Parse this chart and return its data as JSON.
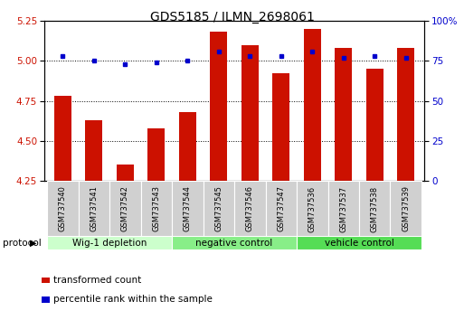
{
  "title": "GDS5185 / ILMN_2698061",
  "categories": [
    "GSM737540",
    "GSM737541",
    "GSM737542",
    "GSM737543",
    "GSM737544",
    "GSM737545",
    "GSM737546",
    "GSM737547",
    "GSM737536",
    "GSM737537",
    "GSM737538",
    "GSM737539"
  ],
  "bar_values": [
    4.78,
    4.63,
    4.35,
    4.58,
    4.68,
    5.18,
    5.1,
    4.92,
    5.2,
    5.08,
    4.95,
    5.08
  ],
  "dot_values": [
    78,
    75,
    73,
    74,
    75,
    81,
    78,
    78,
    81,
    77,
    78,
    77
  ],
  "ylim": [
    4.25,
    5.25
  ],
  "y2lim": [
    0,
    100
  ],
  "yticks": [
    4.25,
    4.5,
    4.75,
    5.0,
    5.25
  ],
  "y2ticks": [
    0,
    25,
    50,
    75,
    100
  ],
  "bar_color": "#cc1100",
  "dot_color": "#0000cc",
  "grid_color": "#000000",
  "protocol_groups": [
    {
      "label": "Wig-1 depletion",
      "start": 0,
      "end": 4,
      "color": "#ccffcc"
    },
    {
      "label": "negative control",
      "start": 4,
      "end": 8,
      "color": "#88ee88"
    },
    {
      "label": "vehicle control",
      "start": 8,
      "end": 12,
      "color": "#55dd55"
    }
  ],
  "protocol_label": "protocol",
  "legend_bar_label": "transformed count",
  "legend_dot_label": "percentile rank within the sample",
  "background_color": "#ffffff",
  "title_fontsize": 10,
  "tick_fontsize": 7.5,
  "label_fontsize": 8,
  "sample_box_color": "#d0d0d0",
  "xlim_left": -0.6,
  "xlim_right": 11.6
}
